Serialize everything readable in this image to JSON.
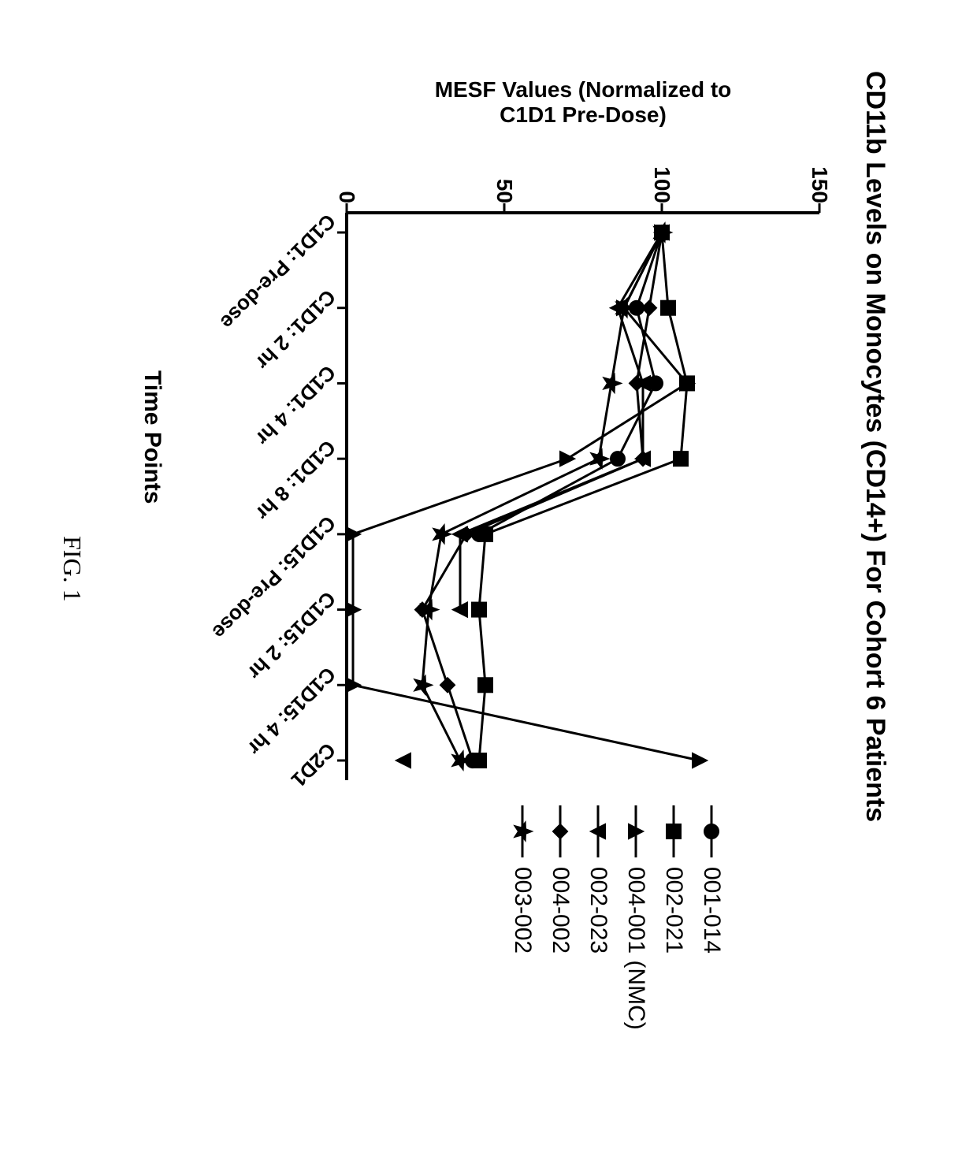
{
  "figure": {
    "title": "CD11b Levels on Monocytes (CD14+) For Cohort 6 Patients",
    "caption": "FIG. 1",
    "xlabel": "Time Points",
    "ylabel_line1": "MESF Values (Normalized to",
    "ylabel_line2": "C1D1 Pre-Dose)",
    "yaxis": {
      "min": 0,
      "max": 150,
      "ticks": [
        0,
        50,
        100,
        150
      ]
    },
    "xaxis": {
      "categories": [
        "C1D1: Pre-dose",
        "C1D1: 2 hr",
        "C1D1: 4 hr",
        "C1D1: 8 hr",
        "C1D15: Pre-dose",
        "C1D15: 2 hr",
        "C1D15: 4 hr",
        "C2D1"
      ]
    },
    "colors": {
      "line": "#000000",
      "background": "#ffffff"
    },
    "line_width": 3,
    "marker_size": 9,
    "series": [
      {
        "id": "001-014",
        "label": "001-014",
        "marker": "circle",
        "values": [
          100,
          92,
          98,
          86,
          42,
          null,
          null,
          40
        ]
      },
      {
        "id": "002-021",
        "label": "002-021",
        "marker": "square",
        "values": [
          100,
          102,
          108,
          106,
          44,
          42,
          44,
          42
        ]
      },
      {
        "id": "004-001",
        "label": "004-001 (NMC)",
        "marker": "triangle-up",
        "values": [
          100,
          88,
          108,
          70,
          2,
          2,
          2,
          112
        ]
      },
      {
        "id": "002-023",
        "label": "002-023",
        "marker": "triangle-down",
        "values": [
          100,
          86,
          94,
          94,
          36,
          36,
          null,
          18
        ]
      },
      {
        "id": "004-002",
        "label": "004-002",
        "marker": "diamond",
        "values": [
          100,
          96,
          92,
          94,
          38,
          24,
          32,
          40
        ]
      },
      {
        "id": "003-002",
        "label": "003-002",
        "marker": "star",
        "values": [
          100,
          88,
          84,
          80,
          30,
          26,
          24,
          36
        ]
      }
    ],
    "yticks": {
      "t0": "0",
      "t1": "50",
      "t2": "100",
      "t3": "150"
    },
    "xticks": {
      "t0": "C1D1: Pre-dose",
      "t1": "C1D1: 2 hr",
      "t2": "C1D1: 4 hr",
      "t3": "C1D1: 8 hr",
      "t4": "C1D15: Pre-dose",
      "t5": "C1D15: 2 hr",
      "t6": "C1D15: 4 hr",
      "t7": "C2D1"
    }
  }
}
